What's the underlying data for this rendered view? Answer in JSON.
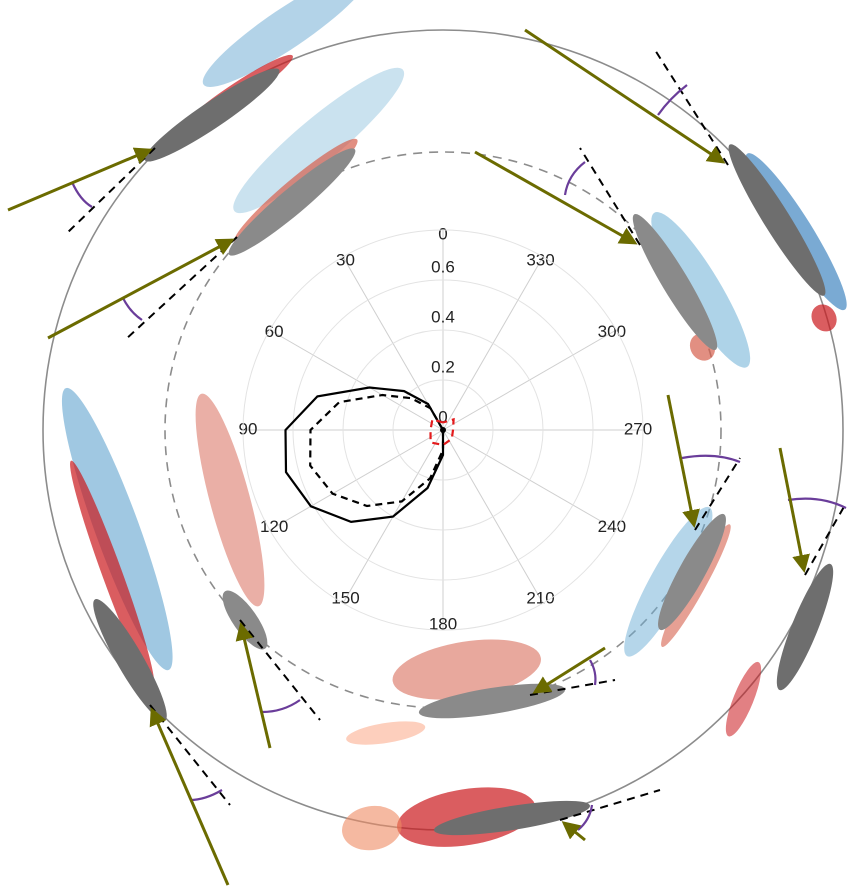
{
  "chart_data": {
    "type": "polar",
    "rlim": [
      0,
      0.8
    ],
    "rticks": [
      0,
      0.2,
      0.4,
      0.6
    ],
    "thetaticks": [
      0,
      30,
      60,
      90,
      120,
      150,
      180,
      210,
      240,
      270,
      300,
      330
    ],
    "series": [
      {
        "line_style": "solid",
        "color": "#000000",
        "theta": [
          15,
          30,
          45,
          60,
          75,
          90,
          105,
          120,
          135,
          150,
          165,
          180,
          195
        ],
        "r": [
          0,
          0.12,
          0.22,
          0.34,
          0.52,
          0.63,
          0.65,
          0.61,
          0.52,
          0.4,
          0.24,
          0.1,
          0
        ]
      },
      {
        "line_style": "dashed",
        "color": "#000000",
        "theta": [
          15,
          30,
          45,
          60,
          75,
          90,
          105,
          120,
          135,
          150,
          165,
          180,
          195
        ],
        "r": [
          0,
          0.1,
          0.18,
          0.28,
          0.43,
          0.53,
          0.55,
          0.51,
          0.43,
          0.33,
          0.2,
          0.08,
          0
        ]
      },
      {
        "line_style": "dashed",
        "color": "#e31a1c",
        "theta": [
          0,
          45,
          90,
          135,
          180,
          225,
          270,
          315,
          360
        ],
        "r": [
          0.03,
          0.06,
          0.05,
          0.07,
          0.06,
          0.05,
          0.04,
          0.06,
          0.03
        ]
      }
    ]
  }
}
